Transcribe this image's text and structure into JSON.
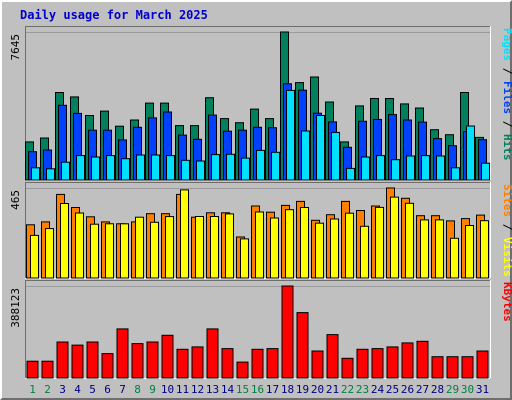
{
  "title": "Daily usage for March 2025",
  "colors": {
    "hits": "#00805c",
    "files": "#0040ff",
    "pages": "#00e0ff",
    "visits": "#ffff00",
    "sites": "#ff8000",
    "kbytes": "#ff0000",
    "weekday_label": "#000080",
    "weekend_label": "#008040"
  },
  "chart_data": [
    {
      "type": "bar",
      "panel": "top",
      "x": [
        1,
        2,
        3,
        4,
        5,
        6,
        7,
        8,
        9,
        10,
        11,
        12,
        13,
        14,
        15,
        16,
        17,
        18,
        19,
        20,
        21,
        22,
        23,
        24,
        25,
        26,
        27,
        28,
        29,
        30,
        31
      ],
      "ymax_label": "7645",
      "ylim": [
        0,
        7645
      ],
      "legend": [
        "Pages",
        "/",
        "Files",
        "/",
        "Hits"
      ],
      "series": [
        {
          "name": "Hits",
          "color_key": "hits",
          "values": [
            1970,
            2170,
            4520,
            4290,
            3330,
            3560,
            2780,
            3100,
            3970,
            3970,
            2810,
            2810,
            4250,
            3170,
            2960,
            3660,
            3170,
            7645,
            5030,
            5320,
            4030,
            1970,
            3830,
            4210,
            4210,
            3930,
            3720,
            2600,
            2340,
            4520,
            2200
          ]
        },
        {
          "name": "Files",
          "color_key": "files",
          "values": [
            1460,
            1550,
            3860,
            3440,
            2570,
            2570,
            2070,
            2720,
            3210,
            3510,
            2320,
            2100,
            3350,
            2520,
            2570,
            2720,
            2700,
            4970,
            4640,
            3450,
            3000,
            1690,
            3030,
            3130,
            3380,
            3100,
            2990,
            2140,
            1770,
            2500,
            2080
          ]
        },
        {
          "name": "Pages",
          "color_key": "pages",
          "values": [
            630,
            580,
            920,
            1260,
            1190,
            1260,
            1100,
            1290,
            1290,
            1260,
            1020,
            980,
            1310,
            1330,
            1130,
            1530,
            1430,
            4630,
            2530,
            3330,
            2460,
            600,
            1190,
            1260,
            1050,
            1240,
            1260,
            1240,
            630,
            2790,
            870
          ]
        }
      ]
    },
    {
      "type": "bar",
      "panel": "middle",
      "x": [
        1,
        2,
        3,
        4,
        5,
        6,
        7,
        8,
        9,
        10,
        11,
        12,
        13,
        14,
        15,
        16,
        17,
        18,
        19,
        20,
        21,
        22,
        23,
        24,
        25,
        26,
        27,
        28,
        29,
        30,
        31
      ],
      "ymax_label": "465",
      "ylim": [
        0,
        465
      ],
      "legend": [
        "Sites",
        "/",
        "Visits"
      ],
      "series": [
        {
          "name": "Sites",
          "color_key": "sites",
          "values": [
            275,
            290,
            432,
            364,
            316,
            290,
            280,
            290,
            332,
            332,
            432,
            314,
            337,
            337,
            212,
            372,
            340,
            375,
            396,
            298,
            327,
            396,
            349,
            372,
            465,
            412,
            322,
            322,
            295,
            307,
            325
          ]
        },
        {
          "name": "Visits",
          "color_key": "visits",
          "values": [
            220,
            255,
            385,
            336,
            278,
            280,
            280,
            314,
            288,
            317,
            455,
            318,
            318,
            331,
            202,
            341,
            310,
            353,
            364,
            283,
            305,
            335,
            267,
            365,
            418,
            386,
            300,
            300,
            205,
            271,
            296
          ]
        }
      ]
    },
    {
      "type": "bar",
      "panel": "bottom",
      "x": [
        1,
        2,
        3,
        4,
        5,
        6,
        7,
        8,
        9,
        10,
        11,
        12,
        13,
        14,
        15,
        16,
        17,
        18,
        19,
        20,
        21,
        22,
        23,
        24,
        25,
        26,
        27,
        28,
        29,
        30,
        31
      ],
      "ymax_label": "388123",
      "ylim": [
        0,
        388123
      ],
      "legend": [
        "KBytes"
      ],
      "series": [
        {
          "name": "KBytes",
          "color_key": "kbytes",
          "values": [
            71000,
            71000,
            152000,
            139000,
            152000,
            103000,
            207000,
            145000,
            152000,
            180000,
            121000,
            131000,
            207000,
            124000,
            67000,
            121000,
            124000,
            388123,
            276000,
            114000,
            183000,
            83000,
            121000,
            124000,
            131000,
            148000,
            155000,
            90000,
            90000,
            90000,
            114000
          ]
        }
      ]
    }
  ],
  "weekend_days": [
    1,
    2,
    8,
    9,
    15,
    16,
    22,
    23,
    29,
    30
  ]
}
